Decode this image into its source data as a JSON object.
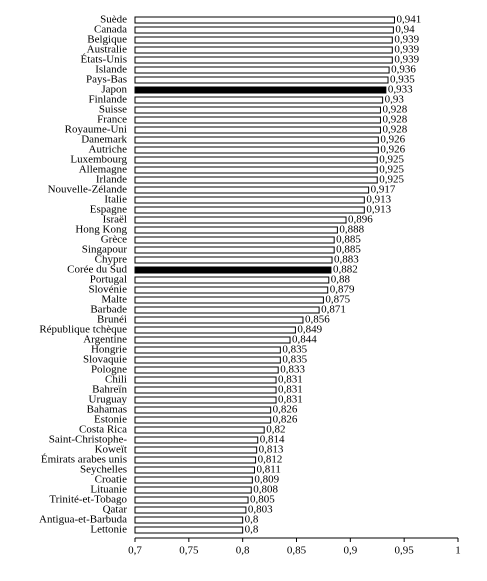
{
  "chart_data": {
    "type": "hbar",
    "categories": [
      "Suède",
      "Canada",
      "Belgique",
      "Australie",
      "États-Unis",
      "Islande",
      "Pays-Bas",
      "Japon",
      "Finlande",
      "Suisse",
      "France",
      "Royaume-Uni",
      "Danemark",
      "Autriche",
      "Luxembourg",
      "Allemagne",
      "Irlande",
      "Nouvelle-Zélande",
      "Italie",
      "Espagne",
      "Israël",
      "Hong Kong",
      "Grèce",
      "Singapour",
      "Chypre",
      "Corée du Sud",
      "Portugal",
      "Slovénie",
      "Malte",
      "Barbade",
      "Brunéi",
      "République tchèque",
      "Argentine",
      "Hongrie",
      "Slovaquie",
      "Pologne",
      "Chili",
      "Bahreïn",
      "Uruguay",
      "Bahamas",
      "Estonie",
      "Costa Rica",
      "Saint-Christophe-",
      "Koweït",
      "Émirats arabes unis",
      "Seychelles",
      "Croatie",
      "Lituanie",
      "Trinité-et-Tobago",
      "Qatar",
      "Antigua-et-Barbuda",
      "Lettonie"
    ],
    "values": [
      0.941,
      0.94,
      0.939,
      0.939,
      0.939,
      0.936,
      0.935,
      0.933,
      0.93,
      0.928,
      0.928,
      0.928,
      0.926,
      0.926,
      0.925,
      0.925,
      0.925,
      0.917,
      0.913,
      0.913,
      0.896,
      0.888,
      0.885,
      0.885,
      0.883,
      0.882,
      0.88,
      0.879,
      0.875,
      0.871,
      0.856,
      0.849,
      0.844,
      0.835,
      0.835,
      0.833,
      0.831,
      0.831,
      0.831,
      0.826,
      0.826,
      0.82,
      0.814,
      0.813,
      0.812,
      0.811,
      0.809,
      0.808,
      0.805,
      0.803,
      0.8,
      0.8
    ],
    "value_labels": [
      "0,941",
      "0,94",
      "0,939",
      "0,939",
      "0,939",
      "0,936",
      "0,935",
      "0,933",
      "0,93",
      "0,928",
      "0,928",
      "0,928",
      "0,926",
      "0,926",
      "0,925",
      "0,925",
      "0,925",
      "0,917",
      "0,913",
      "0,913",
      "0,896",
      "0,888",
      "0,885",
      "0,885",
      "0,883",
      "0,882",
      "0,88",
      "0,879",
      "0,875",
      "0,871",
      "0,856",
      "0,849",
      "0,844",
      "0,835",
      "0,835",
      "0,833",
      "0,831",
      "0,831",
      "0,831",
      "0,826",
      "0,826",
      "0,82",
      "0,814",
      "0,813",
      "0,812",
      "0,811",
      "0,809",
      "0,808",
      "0,805",
      "0,803",
      "0,8",
      "0,8"
    ],
    "colors": [
      "#ffffff",
      "#ffffff",
      "#ffffff",
      "#ffffff",
      "#ffffff",
      "#ffffff",
      "#ffffff",
      "#000000",
      "#ffffff",
      "#ffffff",
      "#ffffff",
      "#ffffff",
      "#ffffff",
      "#ffffff",
      "#ffffff",
      "#ffffff",
      "#ffffff",
      "#ffffff",
      "#ffffff",
      "#ffffff",
      "#ffffff",
      "#ffffff",
      "#ffffff",
      "#ffffff",
      "#ffffff",
      "#000000",
      "#ffffff",
      "#ffffff",
      "#ffffff",
      "#ffffff",
      "#ffffff",
      "#ffffff",
      "#ffffff",
      "#ffffff",
      "#ffffff",
      "#ffffff",
      "#ffffff",
      "#ffffff",
      "#ffffff",
      "#ffffff",
      "#ffffff",
      "#ffffff",
      "#ffffff",
      "#ffffff",
      "#ffffff",
      "#ffffff",
      "#ffffff",
      "#ffffff",
      "#ffffff",
      "#ffffff",
      "#ffffff",
      "#ffffff"
    ],
    "xlim": [
      0.7,
      1
    ],
    "xticks": [
      {
        "value": 0.7,
        "label": "0,7"
      },
      {
        "value": 0.75,
        "label": "0,75"
      },
      {
        "value": 0.8,
        "label": "0,8"
      },
      {
        "value": 0.85,
        "label": "0,85"
      },
      {
        "value": 0.9,
        "label": "0,9"
      },
      {
        "value": 0.95,
        "label": "0,95"
      },
      {
        "value": 1,
        "label": "1"
      }
    ]
  }
}
